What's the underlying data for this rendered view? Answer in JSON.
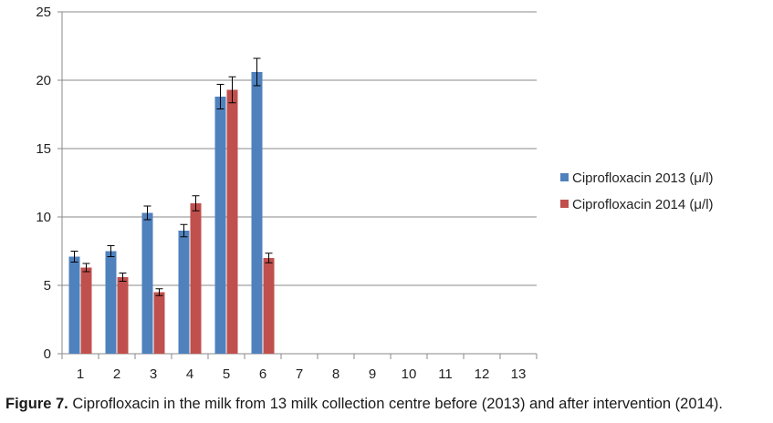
{
  "chart_data": {
    "type": "bar",
    "categories": [
      "1",
      "2",
      "3",
      "4",
      "5",
      "6",
      "7",
      "8",
      "9",
      "10",
      "11",
      "12",
      "13"
    ],
    "series": [
      {
        "name": "Ciprofloxacin 2013 (μ/l)",
        "color": "#4F81BD",
        "values": [
          7.1,
          7.5,
          10.3,
          9.0,
          18.8,
          20.6,
          null,
          null,
          null,
          null,
          null,
          null,
          null
        ],
        "errors": [
          0.4,
          0.4,
          0.5,
          0.45,
          0.9,
          1.0,
          null,
          null,
          null,
          null,
          null,
          null,
          null
        ]
      },
      {
        "name": "Ciprofloxacin 2014 (μ/l)",
        "color": "#C0504D",
        "values": [
          6.3,
          5.6,
          4.5,
          11.0,
          19.3,
          7.0,
          null,
          null,
          null,
          null,
          null,
          null,
          null
        ],
        "errors": [
          0.3,
          0.3,
          0.25,
          0.55,
          0.95,
          0.35,
          null,
          null,
          null,
          null,
          null,
          null,
          null
        ]
      }
    ],
    "yticks": [
      "0",
      "5",
      "10",
      "15",
      "20",
      "25"
    ],
    "ylim": [
      0,
      25
    ],
    "grid": true,
    "legend": "right",
    "xlabel": "",
    "ylabel": "",
    "title": ""
  },
  "caption": {
    "label": "Figure 7.",
    "text": " Ciprofloxacin in the milk from 13 milk collection centre before (2013) and after intervention (2014)."
  }
}
